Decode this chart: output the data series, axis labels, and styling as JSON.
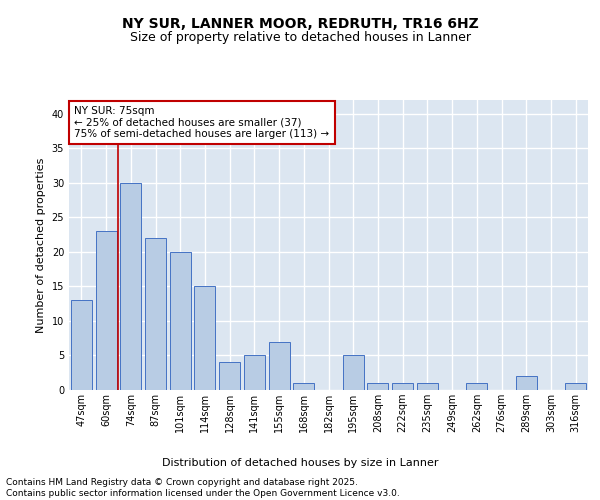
{
  "title": "NY SUR, LANNER MOOR, REDRUTH, TR16 6HZ",
  "subtitle": "Size of property relative to detached houses in Lanner",
  "xlabel": "Distribution of detached houses by size in Lanner",
  "ylabel": "Number of detached properties",
  "categories": [
    "47sqm",
    "60sqm",
    "74sqm",
    "87sqm",
    "101sqm",
    "114sqm",
    "128sqm",
    "141sqm",
    "155sqm",
    "168sqm",
    "182sqm",
    "195sqm",
    "208sqm",
    "222sqm",
    "235sqm",
    "249sqm",
    "262sqm",
    "276sqm",
    "289sqm",
    "303sqm",
    "316sqm"
  ],
  "values": [
    13,
    23,
    30,
    22,
    20,
    15,
    4,
    5,
    7,
    1,
    0,
    5,
    1,
    1,
    1,
    0,
    1,
    0,
    2,
    0,
    1
  ],
  "bar_color": "#b8cce4",
  "bar_edge_color": "#4472c4",
  "background_color": "#dce6f1",
  "grid_color": "#ffffff",
  "vline_color": "#c00000",
  "vline_x": 2,
  "annotation_text": "NY SUR: 75sqm\n← 25% of detached houses are smaller (37)\n75% of semi-detached houses are larger (113) →",
  "annotation_box_color": "#ffffff",
  "annotation_box_edge": "#c00000",
  "footer_text": "Contains HM Land Registry data © Crown copyright and database right 2025.\nContains public sector information licensed under the Open Government Licence v3.0.",
  "ylim": [
    0,
    42
  ],
  "yticks": [
    0,
    5,
    10,
    15,
    20,
    25,
    30,
    35,
    40
  ],
  "title_fontsize": 10,
  "subtitle_fontsize": 9,
  "axis_label_fontsize": 8,
  "tick_fontsize": 7,
  "annotation_fontsize": 7.5,
  "footer_fontsize": 6.5
}
